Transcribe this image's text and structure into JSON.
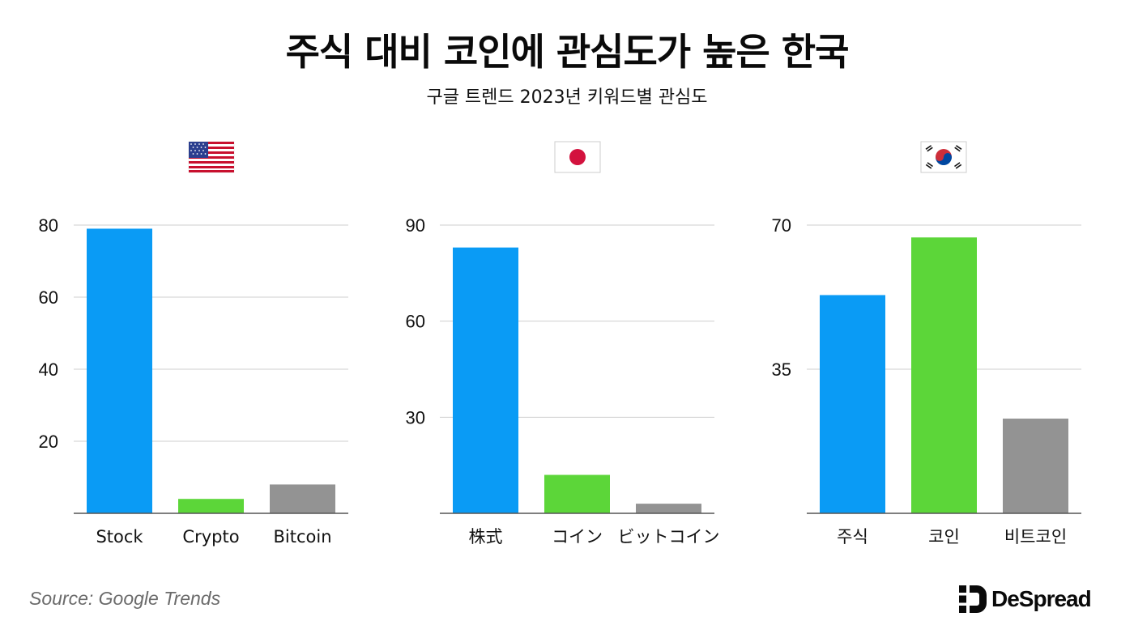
{
  "title": "주식 대비 코인에 관심도가 높은 한국",
  "subtitle": "구글 트렌드 2023년 키워드별 관심도",
  "source": "Source: Google Trends",
  "brand": "DeSpread",
  "colors": {
    "stock": "#0a9bf5",
    "coin": "#5cd639",
    "bitcoin": "#939393",
    "grid": "#cfcfcf",
    "axis": "#555555"
  },
  "chart_data": [
    {
      "type": "bar",
      "country_icon": "us-flag-icon",
      "categories": [
        "Stock",
        "Crypto",
        "Bitcoin"
      ],
      "values": [
        79,
        4,
        8
      ],
      "yticks": [
        20,
        40,
        60,
        80
      ],
      "ylim": [
        0,
        80
      ],
      "grid": true
    },
    {
      "type": "bar",
      "country_icon": "japan-flag-icon",
      "categories": [
        "株式",
        "コイン",
        "ビットコイン"
      ],
      "values": [
        83,
        12,
        3
      ],
      "yticks": [
        30,
        60,
        90
      ],
      "ylim": [
        0,
        90
      ],
      "grid": true
    },
    {
      "type": "bar",
      "country_icon": "korea-flag-icon",
      "categories": [
        "주식",
        "코인",
        "비트코인"
      ],
      "values": [
        53,
        67,
        23
      ],
      "yticks": [
        35,
        70
      ],
      "ylim": [
        0,
        70
      ],
      "grid": true
    }
  ]
}
